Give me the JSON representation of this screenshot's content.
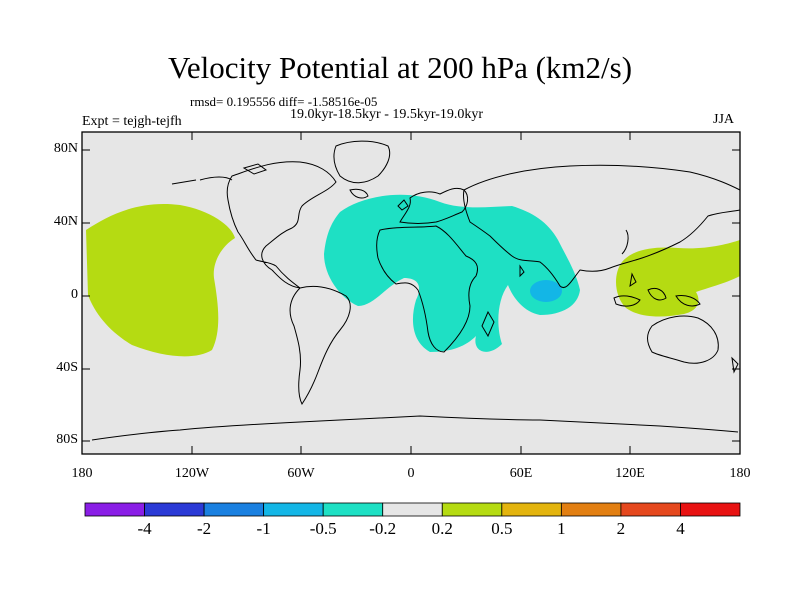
{
  "title": "Velocity Potential at 200 hPa (km2/s)",
  "stats_line": "rmsd= 0.195556 diff= -1.58516e-05",
  "period_line": "19.0kyr-18.5kyr - 19.5kyr-19.0kyr",
  "experiment_label": "Expt = tejgh-tejfh",
  "season_label": "JJA",
  "lat_labels": [
    "80N",
    "40N",
    "0",
    "40S",
    "80S"
  ],
  "lon_labels": [
    "180",
    "120W",
    "60W",
    "0",
    "60E",
    "120E",
    "180"
  ],
  "colorbar": {
    "labels": [
      "-4",
      "-2",
      "-1",
      "-0.5",
      "-0.2",
      "0.2",
      "0.5",
      "1",
      "2",
      "4"
    ],
    "colors": [
      "#8a1ee6",
      "#2b3ad6",
      "#1a80e0",
      "#13b6e6",
      "#1ee0c4",
      "#e6e6e6",
      "#b5db12",
      "#e3b40e",
      "#e27f12",
      "#e5481e",
      "#e81212"
    ]
  },
  "map_colors": {
    "background": "#e6e6e6",
    "positive_fill": "#b5db12",
    "negative_fill": "#1ee0c4",
    "strong_negative_fill": "#13b6e6"
  }
}
